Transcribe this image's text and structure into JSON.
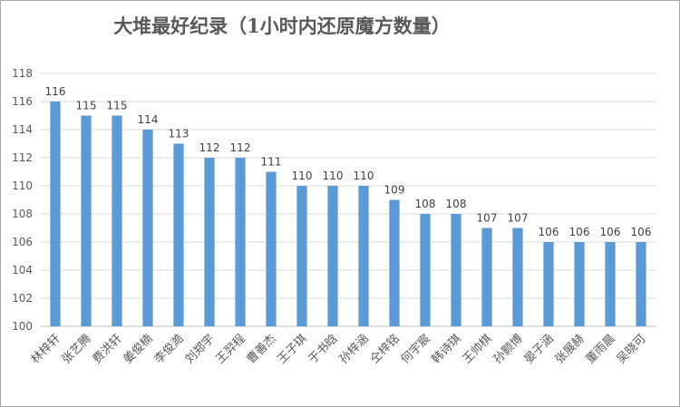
{
  "chart_data": {
    "type": "bar",
    "title": "大堆最好纪录（1小时内还原魔方数量）",
    "xlabel": "",
    "ylabel": "",
    "ylim": [
      100,
      118
    ],
    "yticks": [
      100,
      102,
      104,
      106,
      108,
      110,
      112,
      114,
      116,
      118
    ],
    "grid": true,
    "legend": "none",
    "bar_color": "#5b9bd5",
    "categories": [
      "林梓轩",
      "张艺腾",
      "费洪轩",
      "姜俊楠",
      "李俊澔",
      "刘郑宇",
      "王羿程",
      "曹善杰",
      "王子琪",
      "于书晗",
      "孙梓涵",
      "仝梓铭",
      "何宇宸",
      "韩诗琪",
      "王帅棋",
      "孙颢博",
      "晏子涵",
      "张展赫",
      "董雨晨",
      "吴晓可"
    ],
    "values": [
      116,
      115,
      115,
      114,
      113,
      112,
      112,
      111,
      110,
      110,
      110,
      109,
      108,
      108,
      107,
      107,
      106,
      106,
      106,
      106
    ]
  }
}
